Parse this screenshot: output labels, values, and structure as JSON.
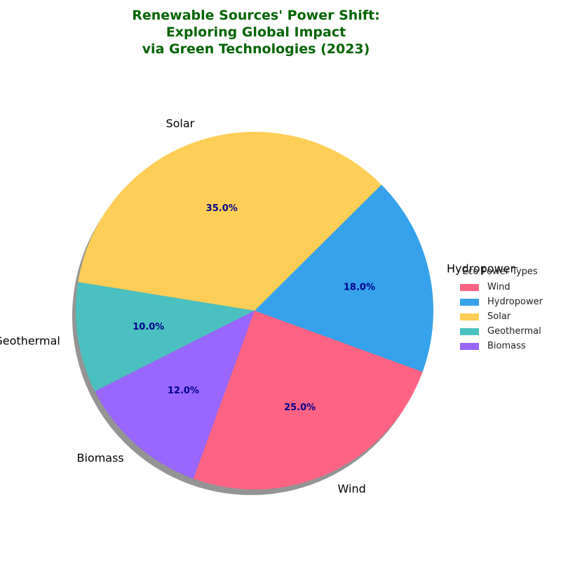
{
  "chart_data": {
    "type": "pie",
    "title_lines": [
      "Renewable Sources' Power Shift:",
      "Exploring Global Impact",
      "via Green Technologies (2023)"
    ],
    "categories": [
      "Wind",
      "Hydropower",
      "Solar",
      "Geothermal",
      "Biomass"
    ],
    "values": [
      25.0,
      18.0,
      35.0,
      10.0,
      12.0
    ],
    "value_labels": [
      "25.0%",
      "18.0%",
      "35.0%",
      "10.0%",
      "12.0%"
    ],
    "colors": [
      "#FF6384",
      "#36A2EB",
      "#FFCE56",
      "#4BC0C0",
      "#9966FF"
    ],
    "legend": {
      "title": "Eco Power Types",
      "placement": "right"
    },
    "start_angle_deg": 250,
    "shadow": true
  }
}
